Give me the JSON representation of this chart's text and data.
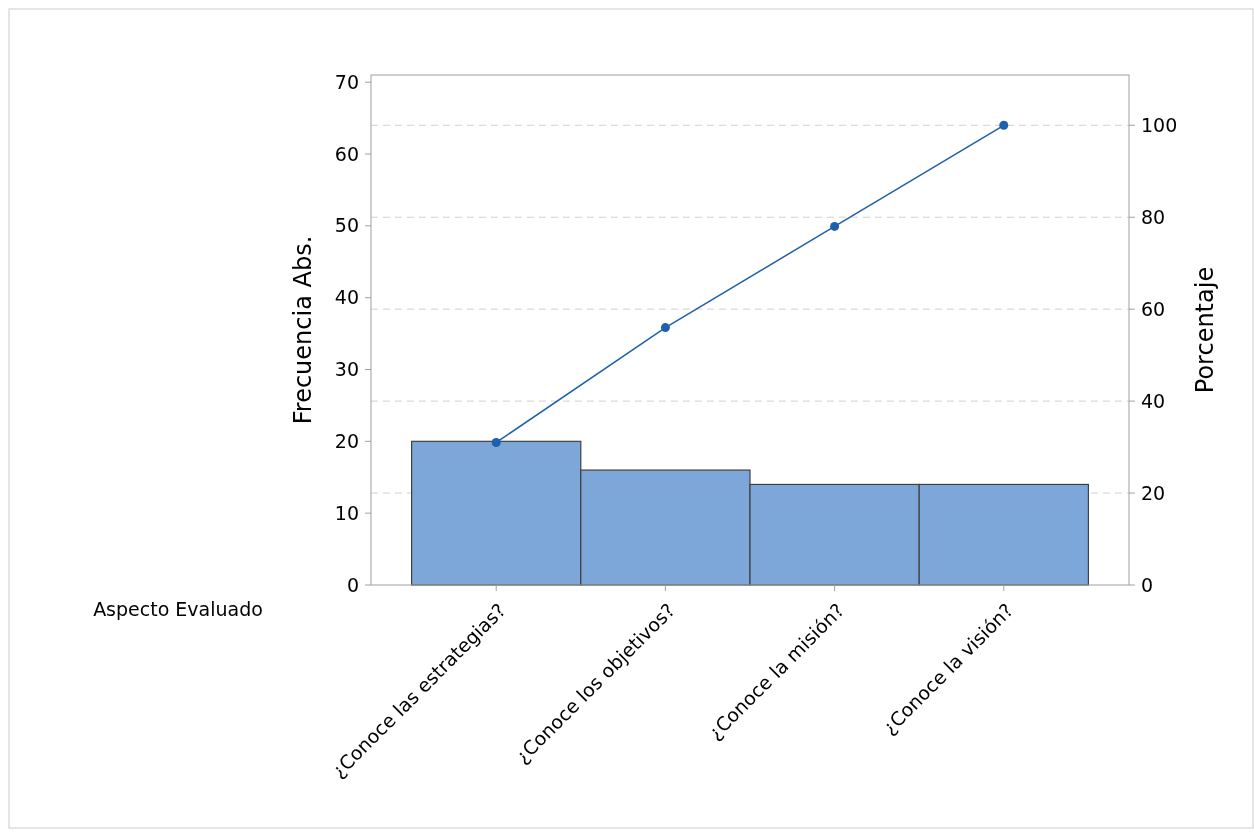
{
  "chart_data": {
    "type": "bar",
    "xlabel": "Aspecto Evaluado",
    "ylabel": "Frecuencia Abs.",
    "y2label": "Porcentaje",
    "categories": [
      "¿Conoce las estrategias?",
      "¿Conoce los objetivos?",
      "¿Conoce la misión?",
      "¿Conoce la visión?"
    ],
    "series": [
      {
        "color": "#7da7d9",
        "values": [
          20,
          16,
          14,
          14
        ]
      },
      {
        "type": "line",
        "axis": "y2",
        "color": "#1f5fad",
        "values": [
          31,
          56,
          78,
          100
        ]
      }
    ],
    "ylim": [
      0,
      71
    ],
    "yticks": [
      0,
      10,
      20,
      30,
      40,
      50,
      60,
      70
    ],
    "y2lim": [
      0,
      110.9375
    ],
    "y2ticks": [
      0,
      20,
      40,
      60,
      80,
      100
    ],
    "grid": true,
    "marker": "circle",
    "line_style": "solid"
  }
}
